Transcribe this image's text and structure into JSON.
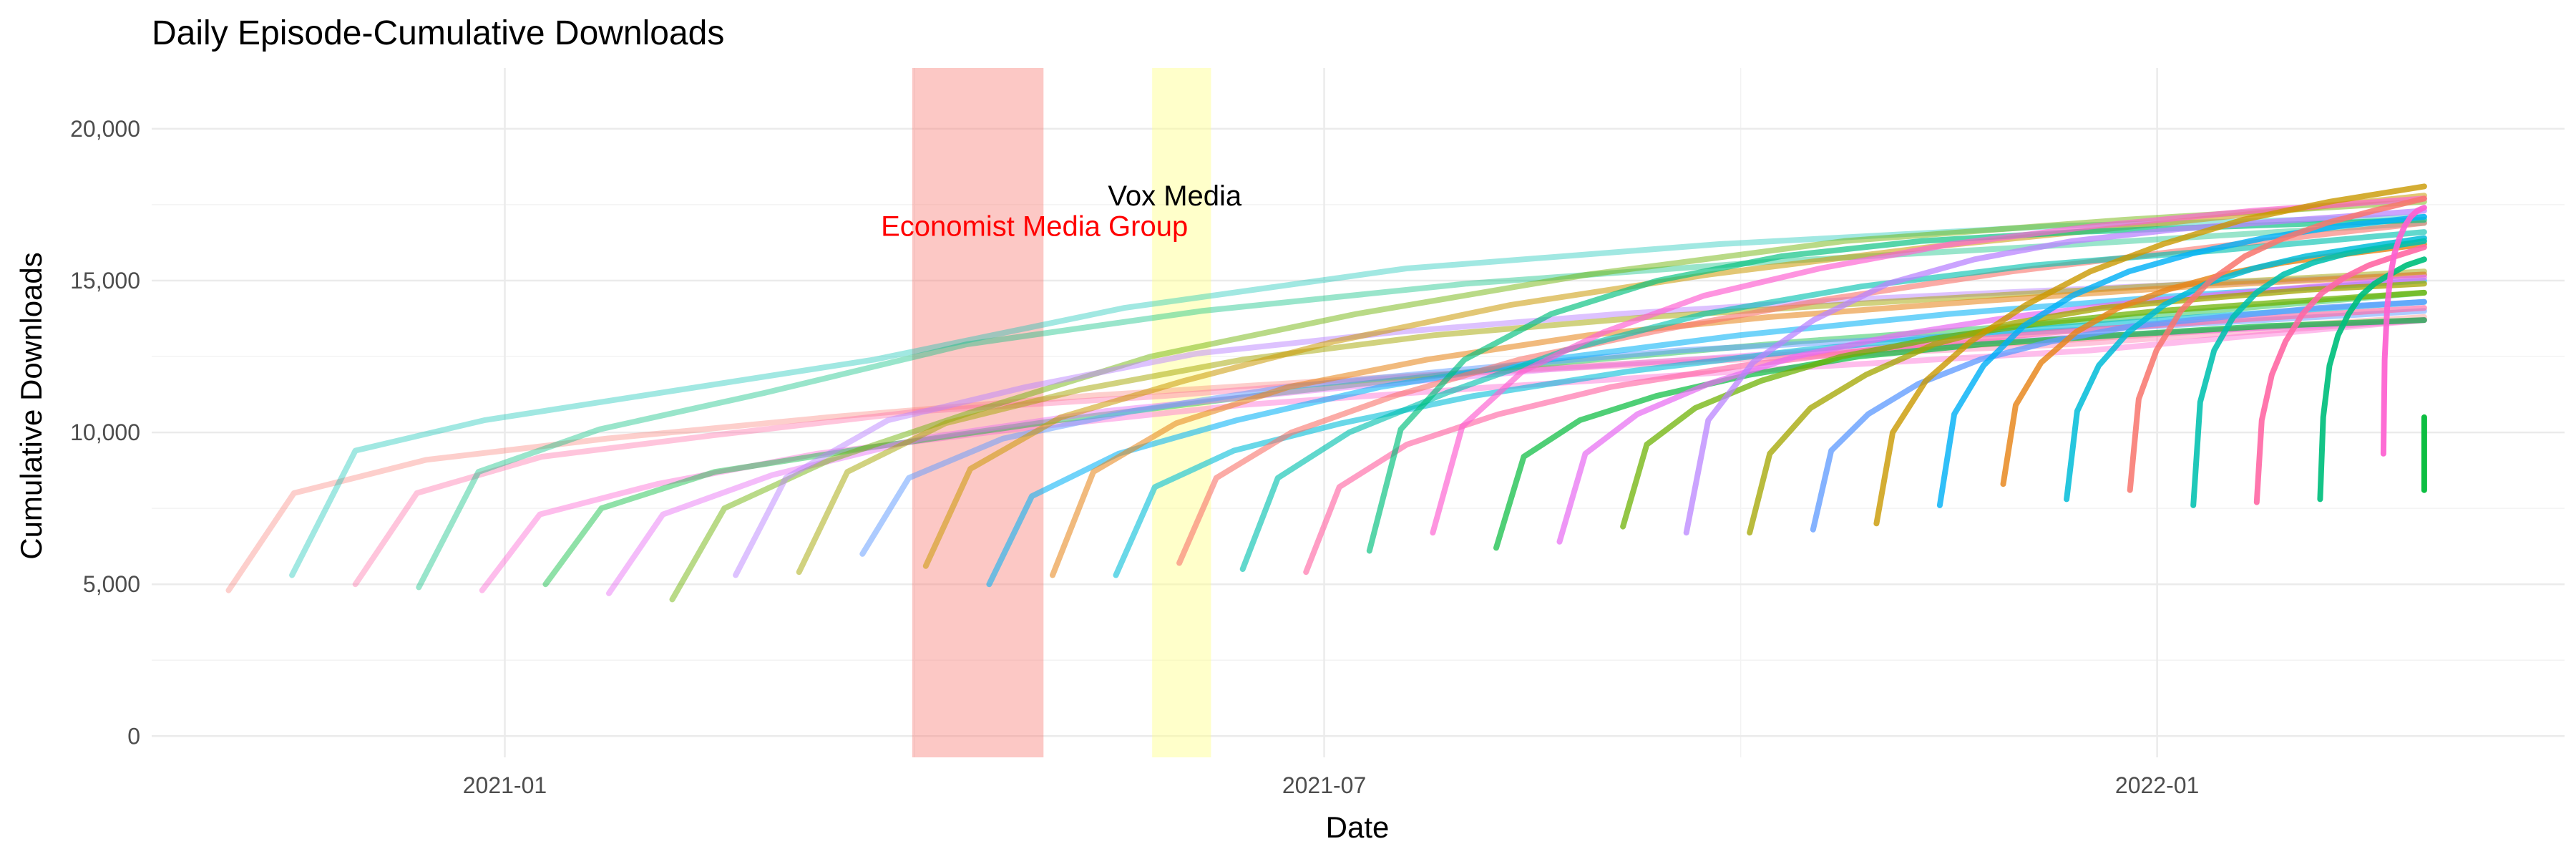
{
  "chart_data": {
    "type": "line",
    "title": "Daily Episode-Cumulative Downloads",
    "xlabel": "Date",
    "ylabel": "Cumulative Downloads",
    "x_range": [
      "2020-10-15",
      "2022-04-01"
    ],
    "ylim": [
      -700,
      22000
    ],
    "x_ticks": [
      {
        "date": "2021-01-01",
        "label": "2021-01"
      },
      {
        "date": "2021-07-01",
        "label": "2021-07"
      },
      {
        "date": "2022-01-01",
        "label": "2022-01"
      }
    ],
    "y_ticks": [
      {
        "value": 0,
        "label": "0"
      },
      {
        "value": 5000,
        "label": "5,000"
      },
      {
        "value": 10000,
        "label": "10,000"
      },
      {
        "value": 15000,
        "label": "15,000"
      },
      {
        "value": 20000,
        "label": "20,000"
      }
    ],
    "grid": true,
    "legend": "none",
    "shaded_regions": [
      {
        "start": "2021-04-01",
        "end": "2021-04-30",
        "color": "#f8766d",
        "opacity": 0.4
      },
      {
        "start": "2021-05-24",
        "end": "2021-06-06",
        "color": "#ffff8a",
        "opacity": 0.45
      }
    ],
    "annotations": [
      {
        "text": "Vox Media",
        "date": "2021-05-29",
        "value": 17800,
        "color": "#000000"
      },
      {
        "text": "Economist Media Group",
        "date": "2021-04-28",
        "value": 16800,
        "color": "#ff0000"
      }
    ],
    "end_date": "2022-03-01",
    "series_colors": [
      "#f8766d",
      "#e7861b",
      "#c99800",
      "#a3a500",
      "#6bb100",
      "#00ba38",
      "#00bf7d",
      "#00c0af",
      "#00bcd8",
      "#00b0f6",
      "#619cff",
      "#b983ff",
      "#e76bf3",
      "#fd61d1",
      "#ff67a4"
    ],
    "series": [
      {
        "start": "2020-11-01",
        "values": [
          4800,
          8000,
          9100,
          9800,
          10500,
          11200,
          11800,
          12400,
          13000,
          13800
        ]
      },
      {
        "start": "2020-11-15",
        "values": [
          5300,
          9400,
          10400,
          11300,
          12400,
          14100,
          15400,
          16200,
          16800,
          17100
        ]
      },
      {
        "start": "2020-11-29",
        "values": [
          5000,
          8000,
          9200,
          9900,
          10700,
          11200,
          11900,
          12400,
          12900,
          13700
        ]
      },
      {
        "start": "2020-12-13",
        "values": [
          4900,
          8700,
          10100,
          11300,
          12900,
          14000,
          14900,
          15600,
          16200,
          16900
        ]
      },
      {
        "start": "2020-12-27",
        "values": [
          4800,
          7300,
          8300,
          9300,
          10100,
          10900,
          11500,
          12100,
          12700,
          13700
        ]
      },
      {
        "start": "2021-01-10",
        "values": [
          5000,
          7500,
          8700,
          9500,
          10400,
          11300,
          12200,
          13000,
          13700,
          14600
        ]
      },
      {
        "start": "2021-01-24",
        "values": [
          4700,
          7300,
          8600,
          9800,
          10700,
          11400,
          12100,
          12700,
          13200,
          13700
        ]
      },
      {
        "start": "2021-02-07",
        "values": [
          4500,
          7500,
          9100,
          10700,
          12500,
          13900,
          15200,
          16300,
          17000,
          17600
        ]
      },
      {
        "start": "2021-02-21",
        "values": [
          5300,
          8500,
          10400,
          11500,
          12600,
          13300,
          13900,
          14400,
          14800,
          15200
        ]
      },
      {
        "start": "2021-03-07",
        "values": [
          5400,
          8700,
          10300,
          11400,
          12400,
          13200,
          13800,
          14300,
          14800,
          15300
        ]
      },
      {
        "start": "2021-03-21",
        "values": [
          6000,
          8500,
          9800,
          10700,
          11500,
          12100,
          12700,
          13100,
          13500,
          14000
        ]
      },
      {
        "start": "2021-04-04",
        "values": [
          5600,
          8800,
          10500,
          11700,
          13000,
          14200,
          15200,
          16100,
          16900,
          17800
        ]
      },
      {
        "start": "2021-04-18",
        "values": [
          5000,
          7900,
          9300,
          10400,
          11500,
          12400,
          13200,
          13900,
          14500,
          15000
        ]
      },
      {
        "start": "2021-05-02",
        "values": [
          5300,
          8700,
          10300,
          11500,
          12400,
          13200,
          13800,
          14300,
          14800,
          15200
        ]
      },
      {
        "start": "2021-05-16",
        "values": [
          5300,
          8200,
          9400,
          10300,
          11200,
          12000,
          12700,
          13300,
          13800,
          14300
        ]
      },
      {
        "start": "2021-05-30",
        "values": [
          5700,
          8500,
          10000,
          11200,
          12400,
          13400,
          14400,
          15300,
          16100,
          16900
        ]
      },
      {
        "start": "2021-06-13",
        "values": [
          5500,
          8500,
          10000,
          11300,
          12700,
          13900,
          14800,
          15500,
          16000,
          16600
        ]
      },
      {
        "start": "2021-06-27",
        "values": [
          5400,
          8200,
          9600,
          10600,
          11500,
          12200,
          12800,
          13300,
          13700,
          14100
        ]
      },
      {
        "start": "2021-07-11",
        "values": [
          6100,
          10100,
          12400,
          13900,
          15000,
          15800,
          16300,
          16600,
          16800,
          17000
        ]
      },
      {
        "start": "2021-07-25",
        "values": [
          6700,
          10200,
          12000,
          13300,
          14500,
          15400,
          16200,
          16800,
          17300,
          17700
        ]
      },
      {
        "start": "2021-08-08",
        "values": [
          6200,
          9200,
          10400,
          11200,
          11900,
          12500,
          12900,
          13200,
          13500,
          13700
        ]
      },
      {
        "start": "2021-08-22",
        "values": [
          6400,
          9300,
          10600,
          11600,
          12500,
          13200,
          13800,
          14300,
          14700,
          15100
        ]
      },
      {
        "start": "2021-09-05",
        "values": [
          6900,
          9600,
          10800,
          11700,
          12500,
          13100,
          13600,
          14000,
          14300,
          14600
        ]
      },
      {
        "start": "2021-09-19",
        "values": [
          6700,
          10400,
          12300,
          13700,
          14900,
          15700,
          16300,
          16700,
          17000,
          17300
        ]
      },
      {
        "start": "2021-10-03",
        "values": [
          6700,
          9300,
          10800,
          11900,
          12900,
          13600,
          14100,
          14400,
          14700,
          14900
        ]
      },
      {
        "start": "2021-10-17",
        "values": [
          6800,
          9400,
          10600,
          11600,
          12400,
          13000,
          13500,
          13800,
          14100,
          14300
        ]
      },
      {
        "start": "2021-10-31",
        "values": [
          7000,
          10000,
          11700,
          13000,
          14200,
          15300,
          16200,
          17000,
          17600,
          18100
        ]
      },
      {
        "start": "2021-11-14",
        "values": [
          7600,
          10600,
          12200,
          13500,
          14500,
          15300,
          15900,
          16400,
          16800,
          17100
        ]
      },
      {
        "start": "2021-11-28",
        "values": [
          8300,
          10900,
          12300,
          13300,
          14100,
          14700,
          15200,
          15600,
          15900,
          16200
        ]
      },
      {
        "start": "2021-12-12",
        "values": [
          7800,
          10700,
          12200,
          13300,
          14200,
          14900,
          15400,
          15800,
          16100,
          16400
        ]
      },
      {
        "start": "2021-12-26",
        "values": [
          8100,
          11100,
          12700,
          14000,
          15000,
          15800,
          16400,
          16900,
          17300,
          17700
        ]
      },
      {
        "start": "2022-01-09",
        "values": [
          7600,
          11000,
          12700,
          13800,
          14600,
          15200,
          15600,
          15900,
          16100,
          16300
        ]
      },
      {
        "start": "2022-01-23",
        "values": [
          7700,
          10400,
          11900,
          13000,
          13900,
          14600,
          15100,
          15500,
          15800,
          16100
        ]
      },
      {
        "start": "2022-02-06",
        "values": [
          7800,
          10500,
          12200,
          13200,
          13900,
          14500,
          14900,
          15200,
          15500,
          15700
        ]
      },
      {
        "start": "2022-02-20",
        "values": [
          9300,
          12400,
          14100,
          15200,
          15900,
          16400,
          16800,
          17100,
          17300,
          17400
        ]
      },
      {
        "start": "2022-03-01",
        "values": [
          8100,
          10500
        ]
      }
    ]
  }
}
